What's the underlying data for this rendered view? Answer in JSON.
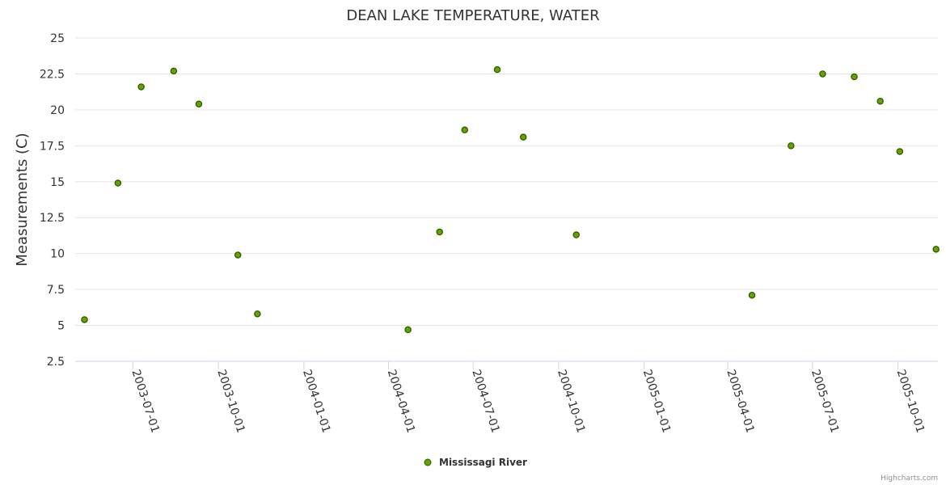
{
  "chart_data": {
    "type": "scatter",
    "title": "DEAN LAKE TEMPERATURE, WATER",
    "xlabel": "",
    "ylabel": "Measurements (C)",
    "ylim": [
      2.5,
      25
    ],
    "y_ticks": [
      "2.5",
      "5",
      "7.5",
      "10",
      "12.5",
      "15",
      "17.5",
      "20",
      "22.5",
      "25"
    ],
    "xlim": [
      "2003-04-30",
      "2005-11-13"
    ],
    "x_ticks": [
      "2003-07-01",
      "2003-10-01",
      "2004-01-01",
      "2004-04-01",
      "2004-07-01",
      "2004-10-01",
      "2005-01-01",
      "2005-04-01",
      "2005-07-01",
      "2005-10-01"
    ],
    "grid": "horizontal",
    "legend_position": "bottom-center",
    "series": [
      {
        "name": "Mississagi River",
        "color": "#66a300",
        "marker_stroke": "#2f5a00",
        "points": [
          {
            "x": "2003-05-10",
            "y": 5.4
          },
          {
            "x": "2003-06-15",
            "y": 14.9
          },
          {
            "x": "2003-07-10",
            "y": 21.6
          },
          {
            "x": "2003-08-14",
            "y": 22.7
          },
          {
            "x": "2003-09-10",
            "y": 20.4
          },
          {
            "x": "2003-10-22",
            "y": 9.9
          },
          {
            "x": "2003-11-12",
            "y": 5.8
          },
          {
            "x": "2004-04-22",
            "y": 4.7
          },
          {
            "x": "2004-05-26",
            "y": 11.5
          },
          {
            "x": "2004-06-22",
            "y": 18.6
          },
          {
            "x": "2004-07-27",
            "y": 22.8
          },
          {
            "x": "2004-08-24",
            "y": 18.1
          },
          {
            "x": "2004-10-20",
            "y": 11.3
          },
          {
            "x": "2005-04-27",
            "y": 7.1
          },
          {
            "x": "2005-06-08",
            "y": 17.5
          },
          {
            "x": "2005-07-12",
            "y": 22.5
          },
          {
            "x": "2005-08-15",
            "y": 22.3
          },
          {
            "x": "2005-09-12",
            "y": 20.6
          },
          {
            "x": "2005-10-03",
            "y": 17.1
          },
          {
            "x": "2005-11-11",
            "y": 10.3
          }
        ]
      }
    ]
  },
  "credits": "Highcharts.com"
}
